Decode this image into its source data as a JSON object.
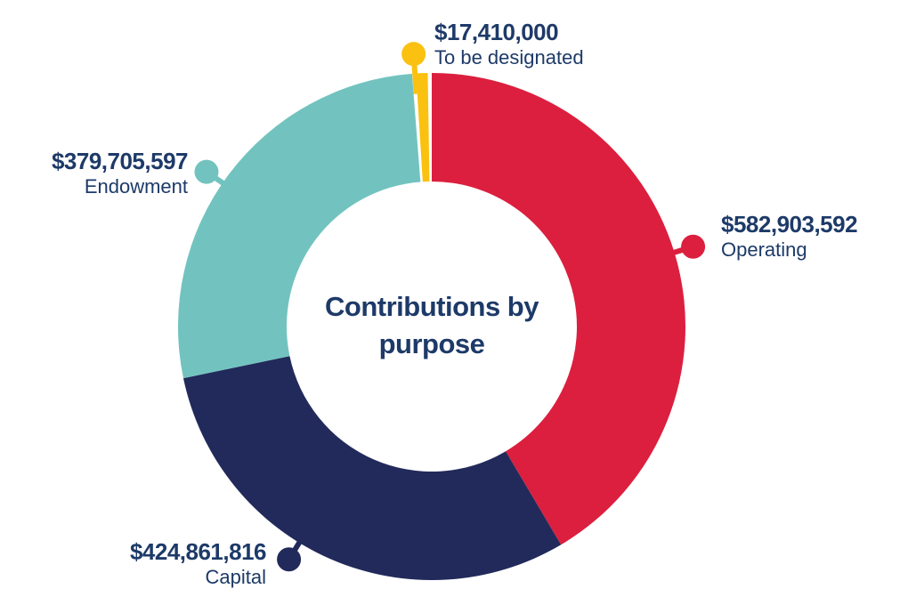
{
  "page": {
    "background": "#ffffff",
    "text_color": "#1d3a68"
  },
  "chart_data": {
    "type": "pie",
    "variant": "donut",
    "title": "Contributions by purpose",
    "legend_position": "callout-labels-around-ring",
    "start_angle_deg": 0,
    "total": 1404881005,
    "slices": [
      {
        "id": "operating",
        "label": "Operating",
        "value": 582903592,
        "value_label": "$582,903,592",
        "color": "#dc1f3e",
        "callout_angle_deg": 73,
        "edge_gap": false
      },
      {
        "id": "capital",
        "label": "Capital",
        "value": 424861816,
        "value_label": "$424,861,816",
        "color": "#212a5a",
        "callout_angle_deg": 211.5,
        "edge_gap": false
      },
      {
        "id": "endowment",
        "label": "Endowment",
        "value": 379705597,
        "value_label": "$379,705,597",
        "color": "#72c3bf",
        "callout_angle_deg": 304.5,
        "edge_gap": false
      },
      {
        "id": "designated",
        "label": "To be designated",
        "value": 17410000,
        "value_label": "$17,410,000",
        "color": "#fbc110",
        "callout_angle_deg": 356.2,
        "edge_gap": true
      }
    ]
  }
}
